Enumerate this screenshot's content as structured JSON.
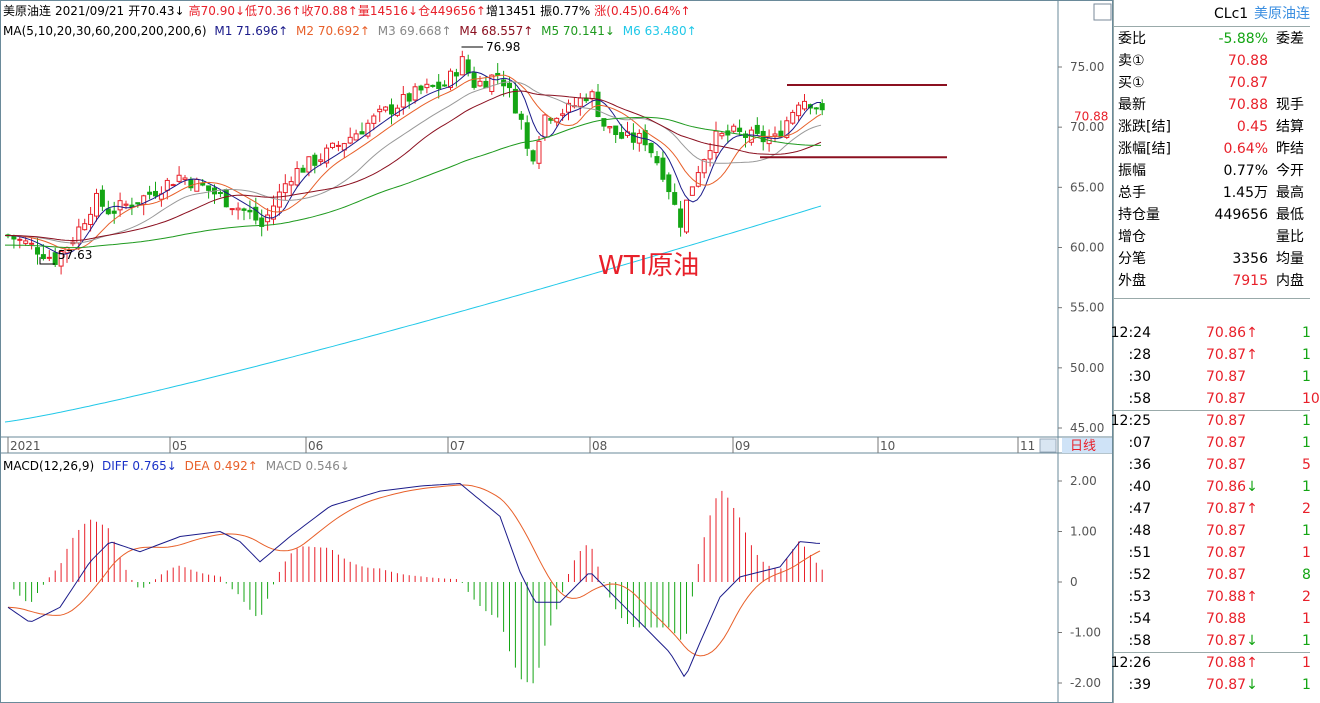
{
  "header": {
    "name": "美原油连",
    "date": "2021/09/21",
    "open": "开70.43↓",
    "high": "高70.90↓",
    "low": "低70.36↑",
    "close": "收70.88↑",
    "volume": "量14516↓",
    "oi": "仓449656↑",
    "inc": "增13451",
    "amp": "振0.77%",
    "chg": "涨(0.45)0.64%↑"
  },
  "ma_legend": {
    "params": "MA(5,10,20,30,60,200,200,200,6)",
    "items": [
      {
        "label": "M1 71.696↑",
        "color": "#1b1b8a"
      },
      {
        "label": "M2 70.692↑",
        "color": "#e8602a"
      },
      {
        "label": "M3 69.668↑",
        "color": "#999999"
      },
      {
        "label": "M4 68.557↑",
        "color": "#8b1020"
      },
      {
        "label": "M5 70.141↓",
        "color": "#1f9a1f"
      },
      {
        "label": "M6 63.480↑",
        "color": "#20c8e8"
      }
    ]
  },
  "price_chart": {
    "high_marker": "76.98",
    "low_marker": "57.63",
    "watermark": "WTI原油",
    "current_price": "70.88",
    "y_ticks": [
      "75.00",
      "70.00",
      "65.00",
      "60.00",
      "55.00",
      "50.00",
      "45.00"
    ],
    "x_ticks": [
      "2021",
      "05",
      "06",
      "07",
      "08",
      "09",
      "10",
      "11"
    ],
    "period_label": "日线"
  },
  "macd": {
    "params": "MACD(12,26,9)",
    "diff": "DIFF 0.765↓",
    "dea": "DEA 0.492↑",
    "macd": "MACD 0.546↓",
    "y_ticks": [
      "2.00",
      "1.00",
      "0",
      "-1.00",
      "-2.00"
    ]
  },
  "side": {
    "code": "CLc1",
    "name": "美原油连",
    "rows": [
      {
        "k": "委比",
        "v": "-5.88%",
        "c": "green",
        "k2": "委差"
      },
      {
        "k": "卖①",
        "v": "70.88",
        "c": "red",
        "k2": ""
      },
      {
        "k": "买①",
        "v": "70.87",
        "c": "red",
        "k2": ""
      },
      {
        "k": "最新",
        "v": "70.88",
        "c": "red",
        "k2": "现手"
      },
      {
        "k": "涨跌[结]",
        "v": "0.45",
        "c": "red",
        "k2": "结算"
      },
      {
        "k": "涨幅[结]",
        "v": "0.64%",
        "c": "red",
        "k2": "昨结"
      },
      {
        "k": "振幅",
        "v": "0.77%",
        "c": "black",
        "k2": "今开"
      },
      {
        "k": "总手",
        "v": "1.45万",
        "c": "black",
        "k2": "最高"
      },
      {
        "k": "持仓量",
        "v": "449656",
        "c": "black",
        "k2": "最低"
      },
      {
        "k": "增仓",
        "v": "",
        "c": "black",
        "k2": "量比"
      },
      {
        "k": "分笔",
        "v": "3356",
        "c": "black",
        "k2": "均量"
      },
      {
        "k": "外盘",
        "v": "7915",
        "c": "red",
        "k2": "内盘"
      }
    ],
    "ticks": [
      {
        "t": "12:24",
        "p": "70.86↑",
        "v": "1",
        "vc": "green",
        "group": true
      },
      {
        "t": ":28",
        "p": "70.87↑",
        "v": "1",
        "vc": "green"
      },
      {
        "t": ":30",
        "p": "70.87",
        "v": "1",
        "vc": "green"
      },
      {
        "t": ":58",
        "p": "70.87",
        "v": "10",
        "vc": "red"
      },
      {
        "t": "12:25",
        "p": "70.87",
        "v": "1",
        "vc": "green",
        "group": true
      },
      {
        "t": ":07",
        "p": "70.87",
        "v": "1",
        "vc": "green"
      },
      {
        "t": ":36",
        "p": "70.87",
        "v": "5",
        "vc": "red"
      },
      {
        "t": ":40",
        "p": "70.86↓",
        "v": "1",
        "vc": "green"
      },
      {
        "t": ":47",
        "p": "70.87↑",
        "v": "2",
        "vc": "red"
      },
      {
        "t": ":48",
        "p": "70.87",
        "v": "1",
        "vc": "green"
      },
      {
        "t": ":51",
        "p": "70.87",
        "v": "1",
        "vc": "red"
      },
      {
        "t": ":52",
        "p": "70.87",
        "v": "8",
        "vc": "green"
      },
      {
        "t": ":53",
        "p": "70.88↑",
        "v": "2",
        "vc": "red"
      },
      {
        "t": ":54",
        "p": "70.88",
        "v": "1",
        "vc": "red"
      },
      {
        "t": ":58",
        "p": "70.87↓",
        "v": "1",
        "vc": "green"
      },
      {
        "t": "12:26",
        "p": "70.88↑",
        "v": "1",
        "vc": "red",
        "group": true
      },
      {
        "t": ":39",
        "p": "70.87↓",
        "v": "1",
        "vc": "green"
      }
    ]
  },
  "colors": {
    "up": "#e8202a",
    "down": "#14a514",
    "ma1": "#1b1b8a",
    "ma2": "#e8602a",
    "ma3": "#999999",
    "ma4": "#8b1020",
    "ma5": "#1f9a1f",
    "ma6": "#20c8e8",
    "box": "#8b1020"
  }
}
